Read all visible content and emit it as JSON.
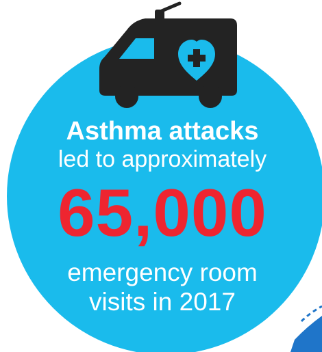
{
  "headline": "Asthma attacks",
  "subline": "led to approximately",
  "statistic": "65,000",
  "description": {
    "line1": "emergency room",
    "line2": "visits in 2017"
  },
  "icons": [
    "ambulance-icon",
    "heart-icon",
    "medical-cross-icon"
  ],
  "colors": {
    "circle": "#1abbec",
    "accent_red": "#ee2530",
    "ambulance": "#232323",
    "text": "#ffffff",
    "corner_accent": "#1f75c9"
  }
}
